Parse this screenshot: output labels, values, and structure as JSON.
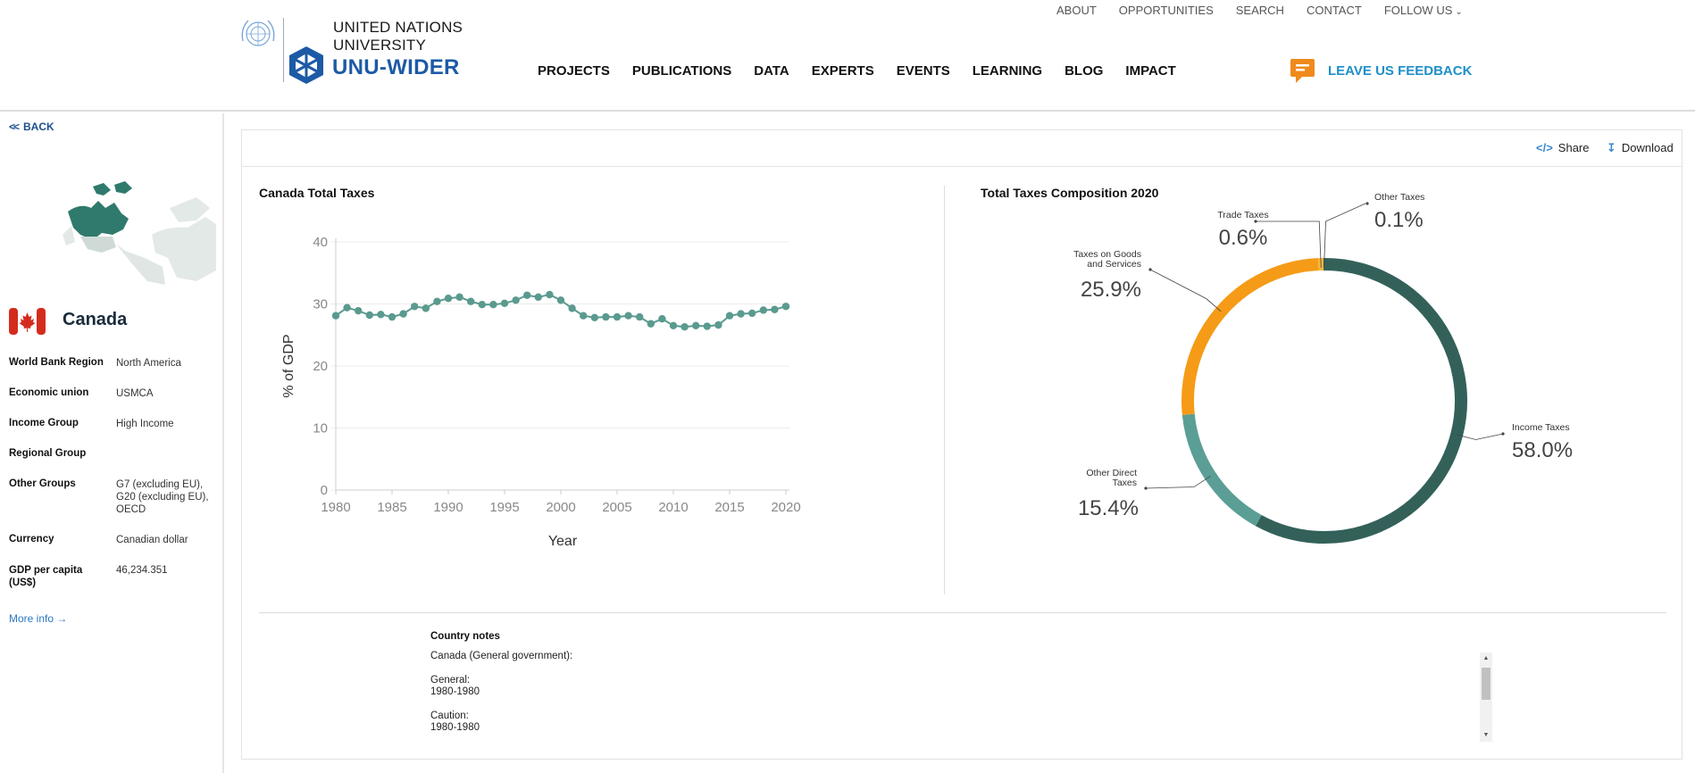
{
  "header": {
    "org_line1": "UNITED NATIONS",
    "org_line2": "UNIVERSITY",
    "org_line3": "UNU-WIDER",
    "top_links": [
      "ABOUT",
      "OPPORTUNITIES",
      "SEARCH",
      "CONTACT",
      "FOLLOW US"
    ],
    "main_nav": [
      "PROJECTS",
      "PUBLICATIONS",
      "DATA",
      "EXPERTS",
      "EVENTS",
      "LEARNING",
      "BLOG",
      "IMPACT"
    ],
    "feedback_label": "LEAVE US FEEDBACK",
    "brand_color": "#1d5aa6",
    "feedback_color": "#1f8fc9",
    "feedback_icon_color": "#f08a1c"
  },
  "sidebar": {
    "back_label": "BACK",
    "country": "Canada",
    "info": [
      {
        "key": "World Bank Region",
        "value": "North America"
      },
      {
        "key": "Economic union",
        "value": "USMCA"
      },
      {
        "key": "Income Group",
        "value": "High Income"
      },
      {
        "key": "Regional Group",
        "value": ""
      },
      {
        "key": "Other Groups",
        "value": "G7 (excluding EU), G20 (excluding EU), OECD"
      },
      {
        "key": "Currency",
        "value": "Canadian dollar"
      },
      {
        "key": "GDP per capita (US$)",
        "value": "46,234.351"
      }
    ],
    "more_info": "More info →"
  },
  "toolbar": {
    "share_label": "Share",
    "download_label": "Download"
  },
  "charts": {
    "line_title": "Canada Total Taxes",
    "donut_title": "Total Taxes Composition 2020"
  },
  "chart_data": [
    {
      "type": "line",
      "title": "Canada Total Taxes",
      "xlabel": "Year",
      "ylabel": "% of GDP",
      "xlim": [
        1980,
        2020
      ],
      "ylim": [
        0,
        40
      ],
      "xticks": [
        1980,
        1985,
        1990,
        1995,
        2000,
        2005,
        2010,
        2015,
        2020
      ],
      "yticks": [
        0,
        10,
        20,
        30,
        40
      ],
      "color": "#5a9a8f",
      "x": [
        1980,
        1981,
        1982,
        1983,
        1984,
        1985,
        1986,
        1987,
        1988,
        1989,
        1990,
        1991,
        1992,
        1993,
        1994,
        1995,
        1996,
        1997,
        1998,
        1999,
        2000,
        2001,
        2002,
        2003,
        2004,
        2005,
        2006,
        2007,
        2008,
        2009,
        2010,
        2011,
        2012,
        2013,
        2014,
        2015,
        2016,
        2017,
        2018,
        2019,
        2020
      ],
      "y": [
        28.1,
        29.4,
        28.9,
        28.2,
        28.3,
        27.9,
        28.4,
        29.6,
        29.3,
        30.4,
        30.9,
        31.1,
        30.4,
        29.9,
        29.9,
        30.1,
        30.6,
        31.4,
        31.1,
        31.5,
        30.6,
        29.3,
        28.1,
        27.8,
        27.9,
        27.9,
        28.1,
        27.9,
        26.8,
        27.6,
        26.5,
        26.3,
        26.5,
        26.4,
        26.6,
        28.1,
        28.4,
        28.5,
        29.0,
        29.1,
        29.6
      ]
    },
    {
      "type": "pie",
      "title": "Total Taxes Composition 2020",
      "categories": [
        "Income Taxes",
        "Other Direct Taxes",
        "Taxes on Goods and Services",
        "Trade Taxes",
        "Other Taxes"
      ],
      "values": [
        58.0,
        15.4,
        25.9,
        0.6,
        0.1
      ],
      "labels": [
        "58.0%",
        "15.4%",
        "25.9%",
        "0.6%",
        "0.1%"
      ],
      "colors": [
        "#33615a",
        "#5b9e95",
        "#f59b17",
        "#f5b63c",
        "#2f5f57"
      ],
      "donut": true
    }
  ],
  "notes": {
    "title": "Country notes",
    "line1": "Canada (General government):",
    "line2a": "General:",
    "line2b": "1980-1980",
    "line3a": "Caution:",
    "line3b": "1980-1980"
  }
}
